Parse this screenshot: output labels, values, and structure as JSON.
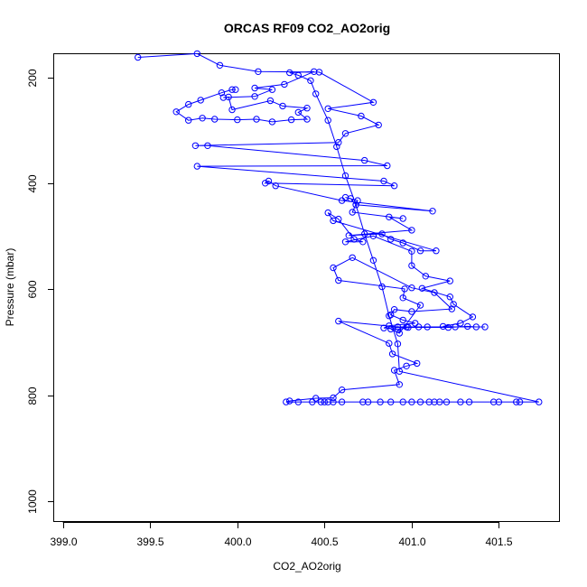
{
  "chart_data": {
    "type": "scatter",
    "title": "ORCAS RF09 CO2_AO2orig",
    "xlabel": "CO2_AO2orig",
    "ylabel": "Pressure (mbar)",
    "xlim": [
      398.95,
      401.85
    ],
    "ylim": [
      1040,
      155
    ],
    "x_ticks": [
      399.0,
      399.5,
      400.0,
      400.5,
      401.0,
      401.5
    ],
    "x_tick_labels": [
      "399.0",
      "399.5",
      "400.0",
      "400.5",
      "401.0",
      "401.5"
    ],
    "y_ticks": [
      200,
      400,
      600,
      800,
      1000
    ],
    "y_tick_labels": [
      "200",
      "400",
      "600",
      "800",
      "1000"
    ],
    "series_color": "#0000ff",
    "series": [
      {
        "name": "CO2_AO2orig",
        "mode": "lines+markers",
        "points": [
          [
            399.43,
            161
          ],
          [
            399.77,
            154
          ],
          [
            399.9,
            176
          ],
          [
            400.12,
            188
          ],
          [
            400.47,
            189
          ],
          [
            400.78,
            246
          ],
          [
            400.52,
            258
          ],
          [
            400.71,
            272
          ],
          [
            400.81,
            289
          ],
          [
            400.62,
            305
          ],
          [
            400.58,
            322
          ],
          [
            399.76,
            328
          ],
          [
            399.83,
            328
          ],
          [
            400.73,
            356
          ],
          [
            400.86,
            366
          ],
          [
            399.77,
            367
          ],
          [
            400.84,
            395
          ],
          [
            400.9,
            404
          ],
          [
            400.16,
            399
          ],
          [
            400.18,
            395
          ],
          [
            400.22,
            404
          ],
          [
            400.6,
            432
          ],
          [
            401.12,
            452
          ],
          [
            400.68,
            440
          ],
          [
            400.65,
            428
          ],
          [
            400.62,
            426
          ],
          [
            400.69,
            432
          ],
          [
            400.66,
            454
          ],
          [
            400.95,
            466
          ],
          [
            400.87,
            463
          ],
          [
            401.0,
            488
          ],
          [
            400.64,
            498
          ],
          [
            400.83,
            495
          ],
          [
            400.88,
            505
          ],
          [
            400.95,
            512
          ],
          [
            401.05,
            527
          ],
          [
            401.14,
            527
          ],
          [
            400.55,
            470
          ],
          [
            400.52,
            455
          ],
          [
            400.58,
            467
          ],
          [
            400.67,
            505
          ],
          [
            400.72,
            510
          ],
          [
            400.62,
            510
          ],
          [
            400.78,
            499
          ],
          [
            401.0,
            528
          ],
          [
            401.0,
            555
          ],
          [
            401.08,
            575
          ],
          [
            401.22,
            584
          ],
          [
            401.06,
            598
          ],
          [
            401.22,
            614
          ],
          [
            401.24,
            628
          ],
          [
            401.35,
            652
          ],
          [
            401.28,
            664
          ],
          [
            401.18,
            670
          ],
          [
            401.25,
            671
          ],
          [
            400.98,
            672
          ],
          [
            400.92,
            676
          ],
          [
            400.88,
            675
          ],
          [
            400.93,
            683
          ],
          [
            401.05,
            630
          ],
          [
            400.95,
            616
          ],
          [
            400.96,
            599
          ],
          [
            400.58,
            583
          ],
          [
            400.55,
            559
          ],
          [
            400.66,
            540
          ],
          [
            401.0,
            597
          ],
          [
            401.13,
            606
          ],
          [
            401.23,
            637
          ],
          [
            401.0,
            642
          ],
          [
            400.9,
            638
          ],
          [
            400.88,
            648
          ],
          [
            400.95,
            658
          ],
          [
            401.02,
            664
          ],
          [
            400.87,
            669
          ],
          [
            400.84,
            673
          ],
          [
            401.04,
            671
          ],
          [
            401.09,
            671
          ],
          [
            401.21,
            672
          ],
          [
            401.32,
            670
          ],
          [
            401.37,
            671
          ],
          [
            401.42,
            671
          ],
          [
            400.97,
            671
          ],
          [
            400.92,
            671
          ],
          [
            400.58,
            660
          ],
          [
            400.87,
            702
          ],
          [
            400.89,
            722
          ],
          [
            401.03,
            740
          ],
          [
            400.97,
            745
          ],
          [
            400.9,
            753
          ],
          [
            400.93,
            780
          ],
          [
            400.6,
            790
          ],
          [
            400.55,
            805
          ],
          [
            400.45,
            806
          ],
          [
            400.3,
            811
          ],
          [
            400.28,
            813
          ],
          [
            400.35,
            813
          ],
          [
            400.43,
            813
          ],
          [
            400.48,
            813
          ],
          [
            400.5,
            813
          ],
          [
            400.52,
            813
          ],
          [
            400.55,
            813
          ],
          [
            400.6,
            813
          ],
          [
            400.72,
            813
          ],
          [
            400.75,
            813
          ],
          [
            400.82,
            813
          ],
          [
            400.88,
            813
          ],
          [
            400.95,
            813
          ],
          [
            401.0,
            813
          ],
          [
            401.05,
            813
          ],
          [
            401.1,
            813
          ],
          [
            401.13,
            813
          ],
          [
            401.16,
            813
          ],
          [
            401.2,
            813
          ],
          [
            401.28,
            813
          ],
          [
            401.33,
            813
          ],
          [
            401.47,
            813
          ],
          [
            401.5,
            813
          ],
          [
            401.6,
            813
          ],
          [
            401.62,
            813
          ],
          [
            401.73,
            813
          ],
          [
            400.93,
            755
          ],
          [
            400.92,
            703
          ],
          [
            400.87,
            650
          ],
          [
            400.83,
            595
          ],
          [
            400.78,
            545
          ],
          [
            400.73,
            495
          ],
          [
            400.68,
            440
          ],
          [
            400.62,
            385
          ],
          [
            400.57,
            330
          ],
          [
            400.52,
            280
          ],
          [
            400.45,
            230
          ],
          [
            400.42,
            205
          ],
          [
            400.35,
            195
          ],
          [
            400.3,
            190
          ],
          [
            400.44,
            188
          ],
          [
            400.27,
            212
          ],
          [
            400.1,
            219
          ],
          [
            400.2,
            222
          ],
          [
            400.1,
            235
          ],
          [
            399.92,
            237
          ],
          [
            399.95,
            236
          ],
          [
            399.97,
            260
          ],
          [
            400.19,
            243
          ],
          [
            400.26,
            253
          ],
          [
            400.4,
            257
          ],
          [
            400.35,
            265
          ],
          [
            400.4,
            278
          ],
          [
            400.31,
            279
          ],
          [
            400.2,
            283
          ],
          [
            400.11,
            278
          ],
          [
            400.0,
            279
          ],
          [
            399.87,
            278
          ],
          [
            399.8,
            276
          ],
          [
            399.72,
            280
          ],
          [
            399.65,
            264
          ],
          [
            399.72,
            250
          ],
          [
            399.79,
            242
          ],
          [
            399.91,
            228
          ],
          [
            399.97,
            222
          ],
          [
            399.99,
            222
          ]
        ]
      }
    ]
  }
}
